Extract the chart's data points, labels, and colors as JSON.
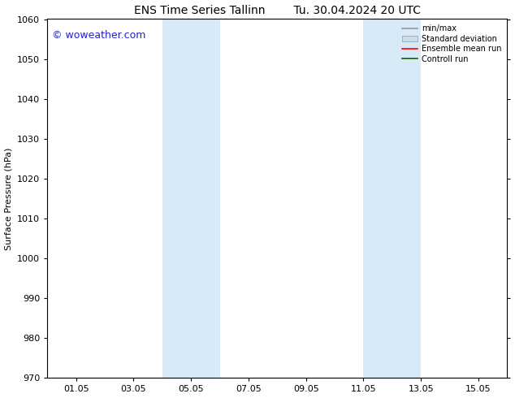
{
  "title_left": "ENS Time Series Tallinn",
  "title_right": "Tu. 30.04.2024 20 UTC",
  "ylabel": "Surface Pressure (hPa)",
  "xlabel": "",
  "ylim": [
    970,
    1060
  ],
  "yticks": [
    970,
    980,
    990,
    1000,
    1010,
    1020,
    1030,
    1040,
    1050,
    1060
  ],
  "xtick_labels": [
    "01.05",
    "03.05",
    "05.05",
    "07.05",
    "09.05",
    "11.05",
    "13.05",
    "15.05"
  ],
  "xtick_positions": [
    1,
    3,
    5,
    7,
    9,
    11,
    13,
    15
  ],
  "xlim": [
    0.0,
    16.0
  ],
  "shaded_bands": [
    {
      "x_start": 4.0,
      "x_end": 6.0
    },
    {
      "x_start": 11.0,
      "x_end": 13.0
    }
  ],
  "shaded_color": "#d8eaf8",
  "background_color": "#ffffff",
  "plot_bg_color": "#ffffff",
  "watermark_text": "© woweather.com",
  "watermark_color": "#2222cc",
  "legend_entries": [
    {
      "label": "min/max",
      "color": "#999999",
      "lw": 1.2,
      "style": "solid"
    },
    {
      "label": "Standard deviation",
      "color": "#c8ddf0",
      "lw": 7,
      "style": "solid"
    },
    {
      "label": "Ensemble mean run",
      "color": "#ff0000",
      "lw": 1.2,
      "style": "solid"
    },
    {
      "label": "Controll run",
      "color": "#006600",
      "lw": 1.2,
      "style": "solid"
    }
  ],
  "spine_color": "#000000",
  "title_fontsize": 10,
  "ylabel_fontsize": 8,
  "tick_fontsize": 8,
  "legend_fontsize": 7,
  "watermark_fontsize": 9
}
